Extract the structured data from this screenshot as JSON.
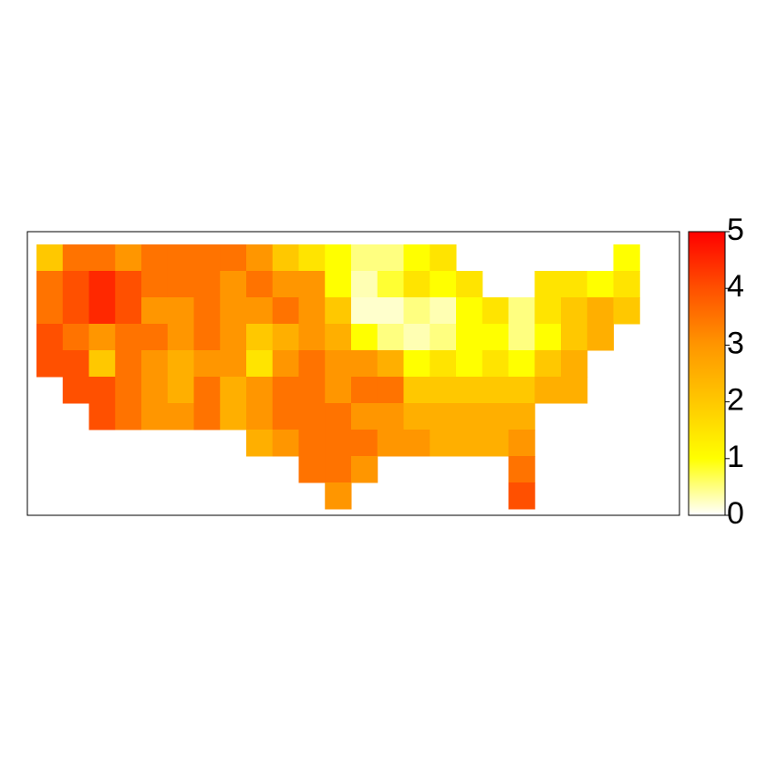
{
  "chart_data": {
    "type": "heatmap",
    "values": [
      [
        2,
        3.5,
        3.5,
        3,
        3.5,
        3.5,
        3.5,
        3.5,
        3,
        2,
        1.5,
        1,
        0.5,
        0.5,
        1,
        1.5,
        null,
        null,
        null,
        null,
        null,
        null,
        1,
        null
      ],
      [
        3.5,
        4,
        4.5,
        4,
        3.5,
        3.5,
        3.5,
        3,
        3.5,
        3,
        3,
        1,
        0.3,
        0.8,
        1.5,
        1,
        1.5,
        null,
        null,
        1.5,
        1.5,
        1,
        1.5,
        null
      ],
      [
        3.5,
        4,
        4.5,
        4,
        3,
        3,
        3.5,
        3,
        3,
        3.5,
        3,
        2,
        0.2,
        0.2,
        0.5,
        0.3,
        1,
        1.5,
        0.5,
        1.5,
        2,
        2.5,
        2,
        null
      ],
      [
        4,
        3.5,
        3,
        3.5,
        3.5,
        3,
        3.5,
        3,
        2,
        2.5,
        3,
        2.5,
        1,
        0.5,
        0.3,
        0.5,
        1,
        1,
        0.5,
        1,
        2,
        2.5,
        null,
        null
      ],
      [
        4,
        4,
        2,
        3.5,
        3,
        2.5,
        3,
        3,
        1.5,
        3,
        3.5,
        3,
        3,
        2.5,
        1,
        1.5,
        1,
        1.5,
        1,
        2,
        2.5,
        null,
        null,
        null
      ],
      [
        null,
        4,
        4,
        3.5,
        3,
        2.5,
        3.5,
        2.5,
        3,
        3.5,
        3.5,
        3,
        3.5,
        3.5,
        2,
        2,
        2,
        2,
        2,
        2.5,
        2.5,
        null,
        null,
        null
      ],
      [
        null,
        null,
        4,
        3.5,
        3,
        3,
        3.5,
        2.5,
        3,
        3.5,
        3.5,
        3.5,
        3,
        3,
        2.5,
        2.5,
        2.5,
        2.5,
        2.5,
        null,
        null,
        null,
        null,
        null
      ],
      [
        null,
        null,
        null,
        null,
        null,
        null,
        null,
        null,
        2.5,
        3,
        3.5,
        3.5,
        3.5,
        3,
        3,
        2.5,
        2.5,
        2.5,
        3,
        null,
        null,
        null,
        null,
        null
      ],
      [
        null,
        null,
        null,
        null,
        null,
        null,
        null,
        null,
        null,
        null,
        3.5,
        3.5,
        3,
        null,
        null,
        null,
        null,
        null,
        3.5,
        null,
        null,
        null,
        null,
        null
      ],
      [
        null,
        null,
        null,
        null,
        null,
        null,
        null,
        null,
        null,
        null,
        null,
        3,
        null,
        null,
        null,
        null,
        null,
        null,
        4,
        null,
        null,
        null,
        null,
        null
      ]
    ],
    "colors": [
      "#ffffff",
      "#ffff00",
      "#ffc800",
      "#ff9600",
      "#ff5000",
      "#ff0000"
    ],
    "zlim": [
      0,
      5
    ],
    "zticks": [
      0,
      1,
      2,
      3,
      4,
      5
    ]
  }
}
